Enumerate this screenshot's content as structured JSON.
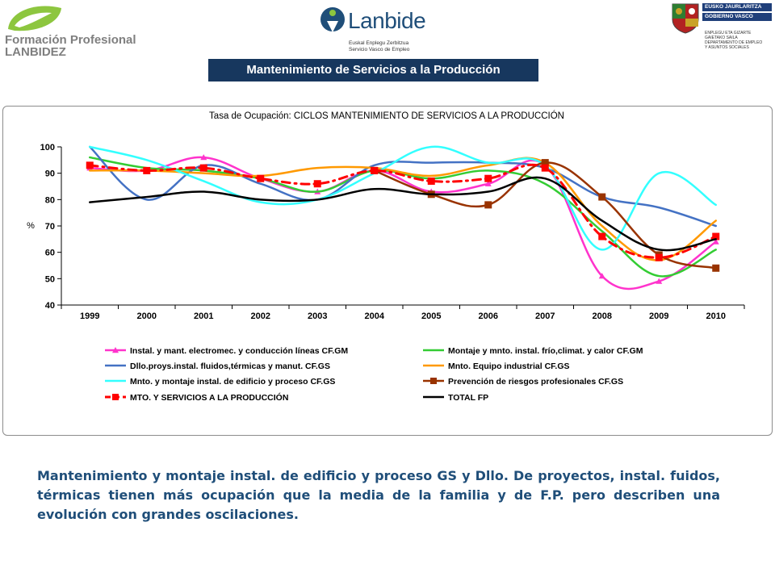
{
  "header": {
    "left_logo": {
      "line1": "Formación Profesional",
      "line2": "LANBIDEZ"
    },
    "center_logo": {
      "name": "Lanbide",
      "sub1": "Euskal Enplegu Zerbitzua",
      "sub2": "Servicio Vasco de Empleo"
    },
    "right_logo": {
      "bar1": "EUSKO JAURLARITZA",
      "bar2": "GOBIERNO VASCO",
      "dept1": "ENPLEGU ETA GIZARTE",
      "dept2": "GAIETAKO SAILA",
      "dept3": "DEPARTAMENTO DE EMPLEO",
      "dept4": "Y ASUNTOS SOCIALES"
    }
  },
  "banner": {
    "title": "Mantenimiento de Servicios a la Producción"
  },
  "chart_data": {
    "type": "line",
    "title": "Tasa de Ocupación: CICLOS MANTENIMIENTO DE SERVICIOS A LA PRODUCCIÓN",
    "xlabel": "",
    "ylabel": "%",
    "categories": [
      "1999",
      "2000",
      "2001",
      "2002",
      "2003",
      "2004",
      "2005",
      "2006",
      "2007",
      "2008",
      "2009",
      "2010"
    ],
    "ylim": [
      40,
      100
    ],
    "yticks": [
      "40",
      "50",
      "60",
      "70",
      "80",
      "90",
      "100"
    ],
    "grid": false,
    "legend_position": "bottom",
    "series": [
      {
        "name": "Instal. y mant. electromec. y conducción líneas CF.GM",
        "color": "#ff33cc",
        "marker": "triangle",
        "dash": "solid",
        "values": [
          92,
          91,
          96,
          88,
          83,
          91,
          83,
          86,
          93,
          51,
          49,
          64
        ]
      },
      {
        "name": "Montaje y mnto. instal. frío,climat. y calor CF.GM",
        "color": "#33cc33",
        "marker": "none",
        "dash": "solid",
        "values": [
          96,
          92,
          91,
          88,
          83,
          91,
          88,
          91,
          86,
          68,
          51,
          61
        ]
      },
      {
        "name": "Dllo.proys.instal. fluidos,térmicas y manut. CF.GS",
        "color": "#4472c4",
        "marker": "none",
        "dash": "solid",
        "values": [
          100,
          80,
          93,
          86,
          80,
          93,
          94,
          94,
          92,
          81,
          77,
          70
        ]
      },
      {
        "name": "Mnto. Equipo industrial CF.GS",
        "color": "#ff9900",
        "marker": "none",
        "dash": "solid",
        "values": [
          91,
          91,
          90,
          89,
          92,
          92,
          89,
          93,
          94,
          70,
          57,
          72
        ]
      },
      {
        "name": "Mnto. y montaje instal. de edificio y proceso CF.GS",
        "color": "#33ffff",
        "marker": "none",
        "dash": "solid",
        "values": [
          100,
          95,
          87,
          79,
          80,
          90,
          100,
          94,
          93,
          61,
          90,
          78
        ]
      },
      {
        "name": "Prevención de riesgos profesionales CF.GS",
        "color": "#993300",
        "marker": "square",
        "dash": "solid",
        "values": [
          null,
          null,
          null,
          null,
          null,
          91,
          82,
          78,
          94,
          81,
          59,
          54
        ]
      },
      {
        "name": "MTO. Y SERVICIOS A LA PRODUCCIÓN",
        "color": "#ff0000",
        "marker": "square",
        "dash": "dashed",
        "values": [
          93,
          91,
          92,
          88,
          86,
          91,
          87,
          88,
          92,
          66,
          58,
          66
        ]
      },
      {
        "name": "TOTAL FP",
        "color": "#000000",
        "marker": "none",
        "dash": "solid",
        "values": [
          79,
          81,
          83,
          80,
          80,
          84,
          82,
          83,
          88,
          72,
          61,
          65
        ]
      }
    ]
  },
  "caption": "Mantenimiento y montaje instal. de edificio y proceso GS y Dllo. De proyectos, instal. fuidos, térmicas tienen más ocupación que la media de la familia y de F.P. pero describen una evolución con grandes oscilaciones."
}
